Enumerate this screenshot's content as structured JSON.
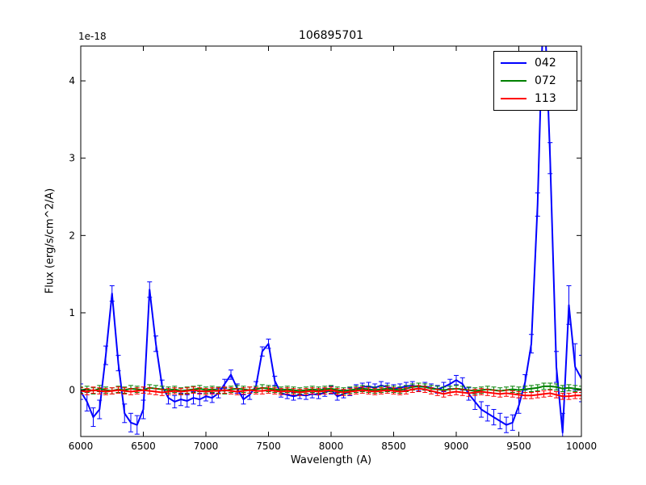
{
  "title": "106895701",
  "offset_text": "1e-18",
  "chart_data": {
    "type": "line",
    "title": "106895701",
    "xlabel": "Wavelength (A)",
    "ylabel": "Flux (erg/s/cm^2/A)",
    "offset_text": "1e-18",
    "xlim": [
      6000,
      10000
    ],
    "ylim": [
      -0.6,
      4.45
    ],
    "xticks": [
      6000,
      6500,
      7000,
      7500,
      8000,
      8500,
      9000,
      9500,
      10000
    ],
    "yticks": [
      0,
      1,
      2,
      3,
      4
    ],
    "grid": false,
    "legend_position": "upper right",
    "x": [
      6000,
      6050,
      6100,
      6150,
      6200,
      6250,
      6300,
      6350,
      6400,
      6450,
      6500,
      6550,
      6600,
      6650,
      6700,
      6750,
      6800,
      6850,
      6900,
      6950,
      7000,
      7050,
      7100,
      7150,
      7200,
      7250,
      7300,
      7350,
      7400,
      7450,
      7500,
      7550,
      7600,
      7650,
      7700,
      7750,
      7800,
      7850,
      7900,
      7950,
      8000,
      8050,
      8100,
      8150,
      8200,
      8250,
      8300,
      8350,
      8400,
      8450,
      8500,
      8550,
      8600,
      8650,
      8700,
      8750,
      8800,
      8850,
      8900,
      8950,
      9000,
      9050,
      9100,
      9150,
      9200,
      9250,
      9300,
      9350,
      9400,
      9450,
      9500,
      9550,
      9600,
      9650,
      9700,
      9750,
      9800,
      9850,
      9900,
      9950,
      10000
    ],
    "series": [
      {
        "name": "042",
        "color": "#0000ff",
        "values": [
          -0.02,
          -0.15,
          -0.35,
          -0.25,
          0.45,
          1.25,
          0.35,
          -0.3,
          -0.42,
          -0.45,
          -0.25,
          1.3,
          0.6,
          0.05,
          -0.1,
          -0.15,
          -0.12,
          -0.14,
          -0.1,
          -0.12,
          -0.08,
          -0.1,
          -0.04,
          0.08,
          0.2,
          0.02,
          -0.12,
          -0.06,
          0.05,
          0.5,
          0.6,
          0.12,
          -0.04,
          -0.06,
          -0.08,
          -0.06,
          -0.07,
          -0.05,
          -0.06,
          -0.03,
          0.0,
          -0.08,
          -0.05,
          -0.02,
          0.02,
          0.04,
          0.05,
          0.03,
          0.06,
          0.04,
          0.02,
          0.03,
          0.05,
          0.06,
          0.04,
          0.05,
          0.03,
          0.01,
          0.04,
          0.08,
          0.13,
          0.08,
          -0.05,
          -0.15,
          -0.25,
          -0.3,
          -0.35,
          -0.4,
          -0.45,
          -0.42,
          -0.2,
          0.1,
          0.6,
          2.4,
          5.2,
          3.0,
          0.3,
          -0.55,
          1.1,
          0.3,
          0.15
        ],
        "err": [
          0.1,
          0.12,
          0.12,
          0.12,
          0.12,
          0.1,
          0.1,
          0.12,
          0.12,
          0.12,
          0.12,
          0.1,
          0.1,
          0.08,
          0.08,
          0.08,
          0.08,
          0.08,
          0.08,
          0.08,
          0.06,
          0.06,
          0.06,
          0.06,
          0.06,
          0.06,
          0.06,
          0.06,
          0.06,
          0.06,
          0.06,
          0.06,
          0.05,
          0.05,
          0.05,
          0.05,
          0.05,
          0.05,
          0.05,
          0.05,
          0.05,
          0.05,
          0.05,
          0.05,
          0.05,
          0.05,
          0.05,
          0.05,
          0.05,
          0.05,
          0.05,
          0.05,
          0.05,
          0.05,
          0.05,
          0.05,
          0.05,
          0.05,
          0.06,
          0.06,
          0.06,
          0.08,
          0.08,
          0.1,
          0.1,
          0.1,
          0.1,
          0.1,
          0.1,
          0.1,
          0.1,
          0.1,
          0.12,
          0.15,
          0.2,
          0.2,
          0.2,
          0.25,
          0.25,
          0.3,
          0.3
        ]
      },
      {
        "name": "072",
        "color": "#008000",
        "values": [
          0.0,
          0.01,
          -0.01,
          0.02,
          0.0,
          -0.01,
          0.01,
          0.0,
          0.02,
          0.01,
          0.0,
          0.03,
          0.02,
          0.01,
          0.0,
          0.01,
          -0.01,
          0.0,
          0.01,
          0.02,
          0.0,
          0.01,
          0.0,
          -0.01,
          0.01,
          0.02,
          0.01,
          0.0,
          0.01,
          0.03,
          0.02,
          0.01,
          0.0,
          0.01,
          0.0,
          -0.01,
          0.0,
          0.01,
          0.0,
          0.01,
          0.02,
          0.0,
          -0.01,
          0.0,
          0.01,
          0.02,
          0.01,
          0.0,
          0.01,
          0.02,
          0.01,
          0.0,
          0.02,
          0.04,
          0.05,
          0.04,
          0.02,
          0.01,
          0.0,
          0.01,
          0.02,
          0.01,
          0.0,
          -0.01,
          0.0,
          0.01,
          0.0,
          -0.01,
          0.0,
          0.01,
          0.0,
          0.01,
          0.02,
          0.03,
          0.05,
          0.05,
          0.04,
          0.02,
          0.03,
          0.02,
          0.01
        ],
        "err": 0.04
      },
      {
        "name": "113",
        "color": "#ff0000",
        "values": [
          -0.01,
          -0.02,
          0.0,
          -0.01,
          -0.02,
          -0.01,
          0.0,
          -0.01,
          -0.02,
          -0.01,
          0.0,
          -0.01,
          -0.02,
          -0.03,
          -0.02,
          -0.01,
          -0.02,
          -0.01,
          0.0,
          -0.01,
          -0.02,
          -0.01,
          -0.01,
          0.0,
          -0.01,
          -0.02,
          -0.01,
          0.0,
          -0.01,
          -0.01,
          0.0,
          -0.01,
          -0.02,
          -0.01,
          -0.02,
          -0.03,
          -0.02,
          -0.01,
          -0.02,
          -0.01,
          0.0,
          -0.02,
          -0.03,
          -0.02,
          -0.01,
          0.0,
          -0.01,
          -0.02,
          -0.01,
          0.0,
          -0.01,
          -0.02,
          -0.01,
          0.01,
          0.02,
          0.01,
          -0.01,
          -0.03,
          -0.05,
          -0.03,
          -0.02,
          -0.03,
          -0.04,
          -0.03,
          -0.02,
          -0.03,
          -0.04,
          -0.05,
          -0.04,
          -0.05,
          -0.06,
          -0.07,
          -0.07,
          -0.06,
          -0.05,
          -0.04,
          -0.06,
          -0.08,
          -0.08,
          -0.07,
          -0.07
        ],
        "err": 0.04
      }
    ]
  }
}
